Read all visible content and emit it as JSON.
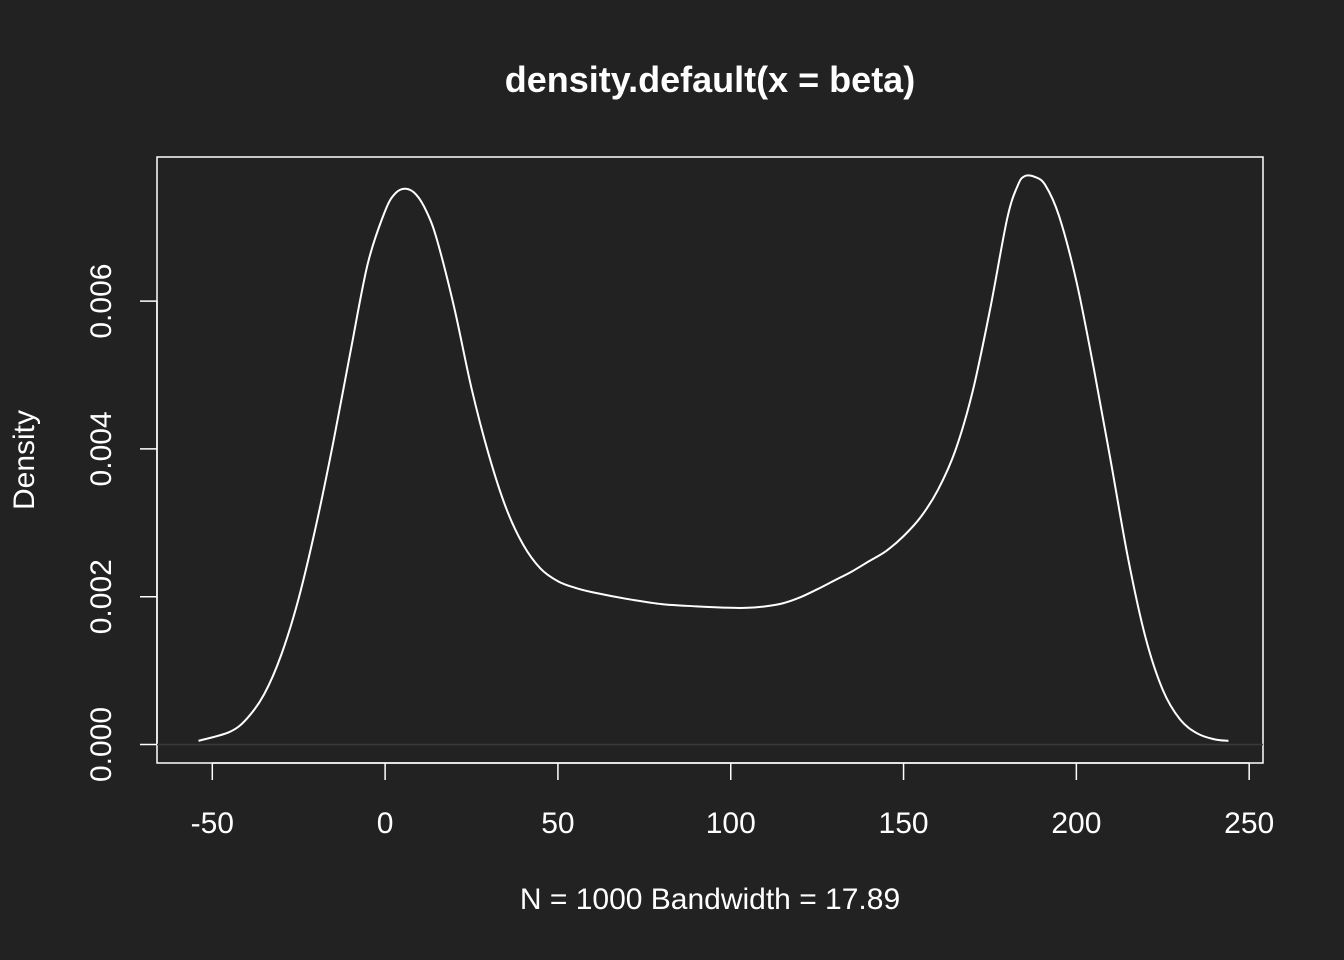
{
  "colors": {
    "background": "#222222",
    "foreground": "#ffffff",
    "zero_line": "#3a3a3a"
  },
  "chart_data": {
    "type": "line",
    "title": "density.default(x = beta)",
    "xlabel": "N = 1000   Bandwidth = 17.89",
    "ylabel": "Density",
    "xlim": [
      -66,
      254
    ],
    "ylim": [
      -0.00025,
      0.00795
    ],
    "x_ticks": [
      -50,
      0,
      50,
      100,
      150,
      200,
      250
    ],
    "x_tick_labels": [
      "-50",
      "0",
      "50",
      "100",
      "150",
      "200",
      "250"
    ],
    "y_ticks": [
      0,
      0.002,
      0.004,
      0.006
    ],
    "y_tick_labels": [
      "0.000",
      "0.002",
      "0.004",
      "0.006"
    ],
    "grid": false,
    "zero_line": true,
    "series": [
      {
        "x": [
          -54,
          -45,
          -40,
          -35,
          -30,
          -25,
          -20,
          -15,
          -10,
          -5,
          0,
          3,
          6,
          9,
          12,
          15,
          20,
          25,
          30,
          35,
          40,
          45,
          50,
          55,
          60,
          70,
          80,
          90,
          100,
          105,
          110,
          115,
          120,
          125,
          130,
          135,
          140,
          145,
          150,
          155,
          160,
          165,
          170,
          175,
          180,
          183,
          185,
          188,
          191,
          195,
          200,
          205,
          210,
          215,
          220,
          225,
          230,
          235,
          240,
          244
        ],
        "y": [
          5e-05,
          0.00017,
          0.00035,
          0.00068,
          0.00122,
          0.00198,
          0.00296,
          0.00409,
          0.00532,
          0.00651,
          0.00722,
          0.00746,
          0.00752,
          0.00744,
          0.00721,
          0.00683,
          0.00591,
          0.00482,
          0.00392,
          0.0032,
          0.0027,
          0.00238,
          0.00221,
          0.00212,
          0.00206,
          0.00197,
          0.0019,
          0.00187,
          0.00185,
          0.00185,
          0.00187,
          0.00191,
          0.00199,
          0.0021,
          0.00222,
          0.00234,
          0.00248,
          0.00262,
          0.00282,
          0.00308,
          0.00345,
          0.00398,
          0.00478,
          0.00588,
          0.00712,
          0.00756,
          0.00769,
          0.00768,
          0.00757,
          0.00715,
          0.00627,
          0.0051,
          0.00382,
          0.00251,
          0.00145,
          0.00074,
          0.00034,
          0.00015,
          7e-05,
          5e-05
        ]
      }
    ]
  }
}
